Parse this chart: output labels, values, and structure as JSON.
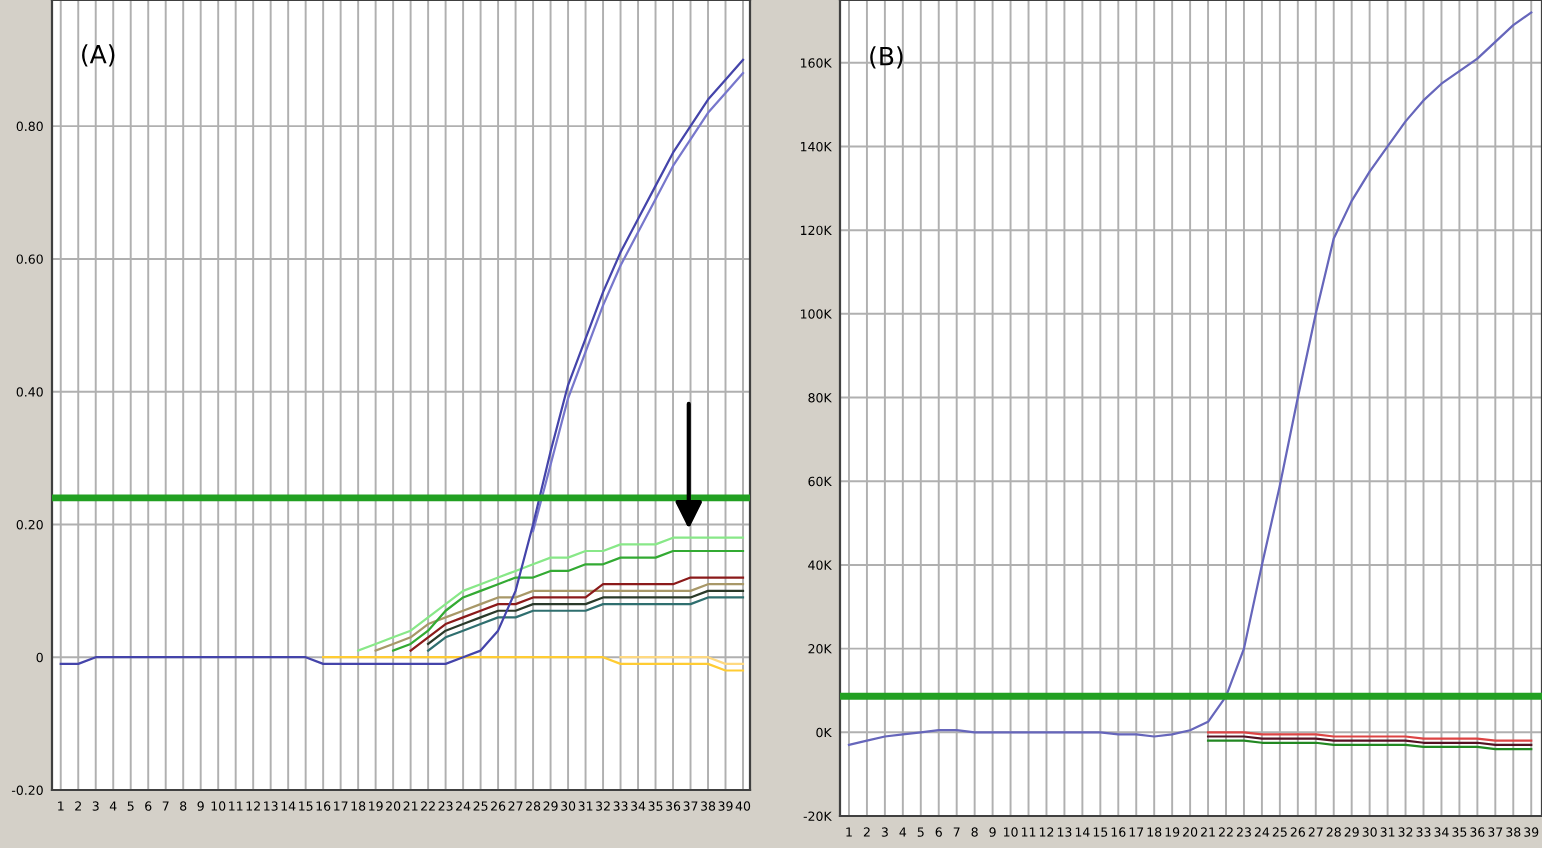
{
  "chart_data": [
    {
      "type": "line",
      "annotations": [
        "(A)"
      ],
      "grid": true,
      "marker": "none",
      "line_style": "solid",
      "x": [
        1,
        2,
        3,
        4,
        5,
        6,
        7,
        8,
        9,
        10,
        11,
        12,
        13,
        14,
        15,
        16,
        17,
        18,
        19,
        20,
        21,
        22,
        23,
        24,
        25,
        26,
        27,
        28,
        29,
        30,
        31,
        32,
        33,
        34,
        35,
        36,
        37,
        38,
        39,
        40
      ],
      "xlim": [
        0.5,
        40.4
      ],
      "xticks": [
        1,
        2,
        3,
        4,
        5,
        6,
        7,
        8,
        9,
        10,
        11,
        12,
        13,
        14,
        15,
        16,
        17,
        18,
        19,
        20,
        21,
        22,
        23,
        24,
        25,
        26,
        27,
        28,
        29,
        30,
        31,
        32,
        33,
        34,
        35,
        36,
        37,
        38,
        39,
        40
      ],
      "ylim": [
        -0.2,
        0.99
      ],
      "yticks": [
        {
          "value": -0.2,
          "label": "-0.20"
        },
        {
          "value": 0,
          "label": "0"
        },
        {
          "value": 0.2,
          "label": "0.20"
        },
        {
          "value": 0.4,
          "label": "0.40"
        },
        {
          "value": 0.6,
          "label": "0.60"
        },
        {
          "value": 0.8,
          "label": "0.80"
        }
      ],
      "ref_lines": [
        {
          "axis": "y",
          "value": 0.24,
          "color": "#22a022"
        }
      ],
      "series": [
        {
          "color": "#ffcc33",
          "values": [
            null,
            null,
            null,
            null,
            null,
            null,
            null,
            null,
            null,
            null,
            null,
            null,
            null,
            null,
            null,
            0,
            0,
            0,
            0,
            0,
            0,
            0,
            0,
            0,
            0,
            0,
            0,
            0,
            0,
            0,
            0,
            0,
            -0.01,
            -0.01,
            -0.01,
            -0.01,
            -0.01,
            -0.01,
            -0.02,
            -0.02
          ]
        },
        {
          "color": "#ffd980",
          "values": [
            null,
            null,
            null,
            null,
            null,
            null,
            null,
            null,
            null,
            null,
            null,
            null,
            null,
            null,
            null,
            null,
            null,
            null,
            null,
            null,
            null,
            null,
            null,
            null,
            null,
            null,
            null,
            null,
            null,
            null,
            null,
            null,
            0,
            0,
            0,
            0,
            0,
            0,
            -0.01,
            -0.01
          ]
        },
        {
          "color": "#2f6f6f",
          "values": [
            null,
            null,
            null,
            null,
            null,
            null,
            null,
            null,
            null,
            null,
            null,
            null,
            null,
            null,
            null,
            null,
            null,
            null,
            null,
            null,
            null,
            0.01,
            0.03,
            0.04,
            0.05,
            0.06,
            0.06,
            0.07,
            0.07,
            0.07,
            0.07,
            0.08,
            0.08,
            0.08,
            0.08,
            0.08,
            0.08,
            0.09,
            0.09,
            0.09
          ]
        },
        {
          "color": "#2a3a2a",
          "values": [
            null,
            null,
            null,
            null,
            null,
            null,
            null,
            null,
            null,
            null,
            null,
            null,
            null,
            null,
            null,
            null,
            null,
            null,
            null,
            null,
            null,
            0.02,
            0.04,
            0.05,
            0.06,
            0.07,
            0.07,
            0.08,
            0.08,
            0.08,
            0.08,
            0.09,
            0.09,
            0.09,
            0.09,
            0.09,
            0.09,
            0.1,
            0.1,
            0.1
          ]
        },
        {
          "color": "#a89868",
          "values": [
            null,
            null,
            null,
            null,
            null,
            null,
            null,
            null,
            null,
            null,
            null,
            null,
            null,
            null,
            null,
            null,
            null,
            null,
            0.01,
            0.02,
            0.03,
            0.05,
            0.06,
            0.07,
            0.08,
            0.09,
            0.09,
            0.1,
            0.1,
            0.1,
            0.1,
            0.1,
            0.1,
            0.1,
            0.1,
            0.1,
            0.1,
            0.11,
            0.11,
            0.11
          ]
        },
        {
          "color": "#8b1a1a",
          "values": [
            null,
            null,
            null,
            null,
            null,
            null,
            null,
            null,
            null,
            null,
            null,
            null,
            null,
            null,
            null,
            null,
            null,
            null,
            null,
            null,
            0.01,
            0.03,
            0.05,
            0.06,
            0.07,
            0.08,
            0.08,
            0.09,
            0.09,
            0.09,
            0.09,
            0.11,
            0.11,
            0.11,
            0.11,
            0.11,
            0.12,
            0.12,
            0.12,
            0.12
          ]
        },
        {
          "color": "#33aa33",
          "values": [
            null,
            null,
            null,
            null,
            null,
            null,
            null,
            null,
            null,
            null,
            null,
            null,
            null,
            null,
            null,
            null,
            null,
            null,
            null,
            0.01,
            0.02,
            0.04,
            0.07,
            0.09,
            0.1,
            0.11,
            0.12,
            0.12,
            0.13,
            0.13,
            0.14,
            0.14,
            0.15,
            0.15,
            0.15,
            0.16,
            0.16,
            0.16,
            0.16,
            0.16
          ]
        },
        {
          "color": "#88e888",
          "values": [
            null,
            null,
            null,
            null,
            null,
            null,
            null,
            null,
            null,
            null,
            null,
            null,
            null,
            null,
            null,
            null,
            null,
            0.01,
            0.02,
            0.03,
            0.04,
            0.06,
            0.08,
            0.1,
            0.11,
            0.12,
            0.13,
            0.14,
            0.15,
            0.15,
            0.16,
            0.16,
            0.17,
            0.17,
            0.17,
            0.18,
            0.18,
            0.18,
            0.18,
            0.18
          ]
        },
        {
          "color": "#7777cc",
          "values": [
            null,
            null,
            null,
            null,
            null,
            null,
            null,
            null,
            null,
            null,
            null,
            null,
            null,
            null,
            null,
            null,
            null,
            null,
            null,
            null,
            null,
            null,
            null,
            null,
            null,
            null,
            null,
            0.19,
            0.29,
            0.39,
            0.46,
            0.53,
            0.59,
            0.64,
            0.69,
            0.74,
            0.78,
            0.82,
            0.85,
            0.88
          ]
        },
        {
          "color": "#4444aa",
          "values": [
            -0.01,
            -0.01,
            0,
            0,
            0,
            0,
            0,
            0,
            0,
            0,
            0,
            0,
            0,
            0,
            0,
            -0.01,
            -0.01,
            -0.01,
            -0.01,
            -0.01,
            -0.01,
            -0.01,
            -0.01,
            0,
            0.01,
            0.04,
            0.1,
            0.2,
            0.31,
            0.41,
            0.48,
            0.55,
            0.61,
            0.66,
            0.71,
            0.76,
            0.8,
            0.84,
            0.87,
            0.9
          ]
        }
      ]
    },
    {
      "type": "line",
      "annotations": [
        "(B)"
      ],
      "grid": true,
      "marker": "none",
      "line_style": "solid",
      "x": [
        1,
        2,
        3,
        4,
        5,
        6,
        7,
        8,
        9,
        10,
        11,
        12,
        13,
        14,
        15,
        16,
        17,
        18,
        19,
        20,
        21,
        22,
        23,
        24,
        25,
        26,
        27,
        28,
        29,
        30,
        31,
        32,
        33,
        34,
        35,
        36,
        37,
        38,
        39
      ],
      "xlim": [
        0.5,
        39.6
      ],
      "xticks": [
        1,
        2,
        3,
        4,
        5,
        6,
        7,
        8,
        9,
        10,
        11,
        12,
        13,
        14,
        15,
        16,
        17,
        18,
        19,
        20,
        21,
        22,
        23,
        24,
        25,
        26,
        27,
        28,
        29,
        30,
        31,
        32,
        33,
        34,
        35,
        36,
        37,
        38,
        39
      ],
      "ylim": [
        -20000,
        175000
      ],
      "yticks": [
        {
          "value": -20000,
          "label": "-20K"
        },
        {
          "value": 0,
          "label": "0K"
        },
        {
          "value": 20000,
          "label": "20K"
        },
        {
          "value": 40000,
          "label": "40K"
        },
        {
          "value": 60000,
          "label": "60K"
        },
        {
          "value": 80000,
          "label": "80K"
        },
        {
          "value": 100000,
          "label": "100K"
        },
        {
          "value": 120000,
          "label": "120K"
        },
        {
          "value": 140000,
          "label": "140K"
        },
        {
          "value": 160000,
          "label": "160K"
        }
      ],
      "ref_lines": [
        {
          "axis": "y",
          "value": 8600,
          "color": "#22a022"
        }
      ],
      "series": [
        {
          "color": "#228822",
          "values": [
            null,
            null,
            null,
            null,
            null,
            null,
            null,
            null,
            null,
            null,
            null,
            null,
            null,
            null,
            null,
            null,
            null,
            null,
            null,
            null,
            -2000,
            -2000,
            -2000,
            -2500,
            -2500,
            -2500,
            -2500,
            -3000,
            -3000,
            -3000,
            -3000,
            -3000,
            -3500,
            -3500,
            -3500,
            -3500,
            -4000,
            -4000,
            -4000
          ]
        },
        {
          "color": "#551122",
          "values": [
            null,
            null,
            null,
            null,
            null,
            null,
            null,
            null,
            null,
            null,
            null,
            null,
            null,
            null,
            null,
            null,
            null,
            null,
            null,
            null,
            -1000,
            -1000,
            -1000,
            -1500,
            -1500,
            -1500,
            -1500,
            -2000,
            -2000,
            -2000,
            -2000,
            -2000,
            -2500,
            -2500,
            -2500,
            -2500,
            -3000,
            -3000,
            -3000
          ]
        },
        {
          "color": "#dd4444",
          "values": [
            null,
            null,
            null,
            null,
            null,
            null,
            null,
            null,
            null,
            null,
            null,
            null,
            null,
            null,
            null,
            null,
            null,
            null,
            null,
            null,
            0,
            0,
            0,
            -500,
            -500,
            -500,
            -500,
            -1000,
            -1000,
            -1000,
            -1000,
            -1000,
            -1500,
            -1500,
            -1500,
            -1500,
            -2000,
            -2000,
            -2000
          ]
        },
        {
          "color": "#6666bb",
          "values": [
            -3000,
            -2000,
            -1000,
            -500,
            0,
            500,
            500,
            0,
            0,
            0,
            0,
            0,
            0,
            0,
            0,
            -500,
            -500,
            -1000,
            -500,
            500,
            2500,
            8600,
            20000,
            40000,
            59000,
            80000,
            100000,
            118000,
            127000,
            134000,
            140000,
            146000,
            151000,
            155000,
            158000,
            161000,
            165000,
            169000,
            172000
          ]
        }
      ]
    }
  ]
}
